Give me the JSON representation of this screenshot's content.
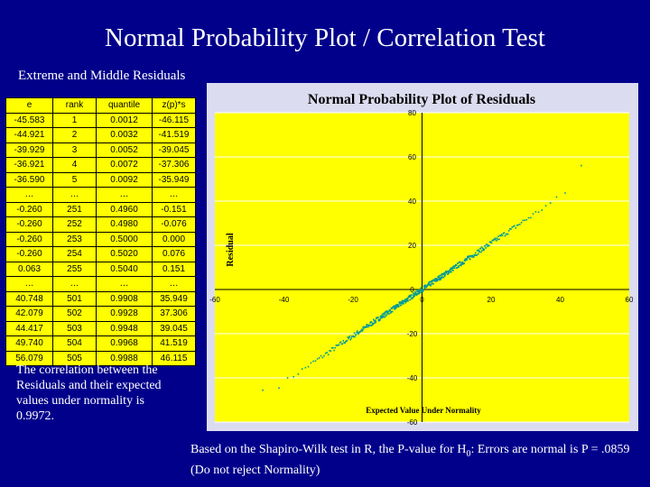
{
  "title": "Normal Probability Plot / Correlation Test",
  "subtitle": "Extreme and Middle Residuals",
  "table": {
    "headers": [
      "e",
      "rank",
      "quantile",
      "z(p)*s"
    ],
    "rows": [
      [
        "-45.583",
        "1",
        "0.0012",
        "-46.115"
      ],
      [
        "-44.921",
        "2",
        "0.0032",
        "-41.519"
      ],
      [
        "-39.929",
        "3",
        "0.0052",
        "-39.045"
      ],
      [
        "-36.921",
        "4",
        "0.0072",
        "-37.306"
      ],
      [
        "-36.590",
        "5",
        "0.0092",
        "-35.949"
      ],
      [
        "…",
        "…",
        "…",
        "…"
      ],
      [
        "-0.260",
        "251",
        "0.4960",
        "-0.151"
      ],
      [
        "-0.260",
        "252",
        "0.4980",
        "-0.076"
      ],
      [
        "-0.260",
        "253",
        "0.5000",
        "0.000"
      ],
      [
        "-0.260",
        "254",
        "0.5020",
        "0.076"
      ],
      [
        "0.063",
        "255",
        "0.5040",
        "0.151"
      ],
      [
        "…",
        "…",
        "…",
        "…"
      ],
      [
        "40.748",
        "501",
        "0.9908",
        "35.949"
      ],
      [
        "42.079",
        "502",
        "0.9928",
        "37.306"
      ],
      [
        "44.417",
        "503",
        "0.9948",
        "39.045"
      ],
      [
        "49.740",
        "504",
        "0.9968",
        "41.519"
      ],
      [
        "56.079",
        "505",
        "0.9988",
        "46.115"
      ]
    ]
  },
  "chart_data": {
    "type": "scatter",
    "title": "Normal Probability Plot of Residuals",
    "xlabel": "Expected Value Under Normality",
    "ylabel": "Residual",
    "xlim": [
      -60,
      60
    ],
    "ylim": [
      -60,
      80
    ],
    "xticks": [
      "-60",
      "-40",
      "-20",
      "0",
      "20",
      "40",
      "60"
    ],
    "yticks": [
      "80",
      "60",
      "40",
      "20",
      "0",
      "-20",
      "-40",
      "-60"
    ],
    "n": 505,
    "points": [
      [
        -46.115,
        -45.583
      ],
      [
        -41.519,
        -44.921
      ],
      [
        -39.045,
        -39.929
      ],
      [
        -37.306,
        -36.921
      ],
      [
        -35.949,
        -36.59
      ],
      [
        -0.151,
        -0.26
      ],
      [
        -0.076,
        -0.26
      ],
      [
        0.0,
        -0.26
      ],
      [
        0.076,
        -0.26
      ],
      [
        0.151,
        0.063
      ],
      [
        35.949,
        40.748
      ],
      [
        37.306,
        42.079
      ],
      [
        39.045,
        44.417
      ],
      [
        41.519,
        49.74
      ],
      [
        46.115,
        56.079
      ]
    ],
    "marker_color": "#009999",
    "plot_bg": "#ffff00"
  },
  "note": "The correlation between the Residuals and their expected values under normality is 0.9972.",
  "footer": {
    "prefix": "Based on the Shapiro-Wilk test in R, the P-value for H",
    "sub": "0",
    "suffix": ": Errors are normal is P = .0859  (Do not reject Normality)"
  }
}
